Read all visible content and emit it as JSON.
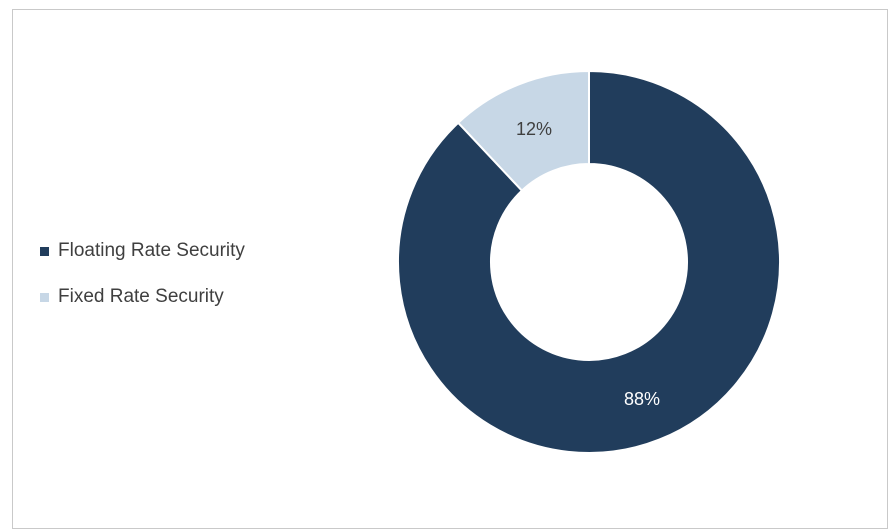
{
  "chart_data": {
    "type": "pie",
    "variant": "donut",
    "categories": [
      "Floating Rate Security",
      "Fixed Rate Security"
    ],
    "values": [
      88,
      12
    ],
    "unit": "%",
    "data_labels": [
      "88%",
      "12%"
    ],
    "colors": [
      "#213d5c",
      "#c7d7e6"
    ],
    "data_label_colors": [
      "#ffffff",
      "#3f3f3f"
    ],
    "legend_position": "left"
  }
}
